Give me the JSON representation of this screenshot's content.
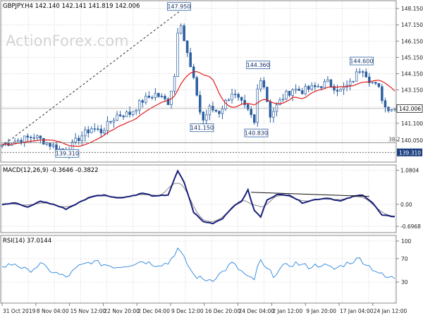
{
  "price_panel": {
    "header": "GBPJPY.H4  142.140 142.141 141.819 142.006",
    "watermark": "ActionForex.com",
    "current_price": "142.006",
    "fib_label": "38.2",
    "annotations": [
      {
        "label": "147.950",
        "time": 55.4,
        "price": 147.95
      },
      {
        "label": "144.360",
        "time": 80.2,
        "price": 144.36
      },
      {
        "label": "144.600",
        "time": 112.6,
        "price": 144.6
      },
      {
        "label": "141.150",
        "time": 62.6,
        "price": 141.15
      },
      {
        "label": "140.830",
        "time": 79.6,
        "price": 140.83
      },
      {
        "label": "139.310",
        "time": 20.4,
        "price": 139.31
      }
    ],
    "level_label_right": "139.310"
  },
  "macd_panel": {
    "header": "MACD(12,26,9) -0.3646 -0.3822"
  },
  "rsi_panel": {
    "header": "RSI(14) 37.0144"
  },
  "x_axis": {
    "tick_labels": [
      "31 Oct 2019",
      "8 Nov 04:00",
      "15 Nov 12:00",
      "22 Nov 20:00",
      "2 Dec 04:00",
      "9 Dec 12:00",
      "16 Dec 20:00",
      "24 Dec 04:00",
      "2 Jan 12:00",
      "9 Jan 20:00",
      "17 Jan 04:00",
      "24 Jan 12:00"
    ]
  },
  "colors": {
    "candle": "#2c5fa0",
    "moving_average": "#e21b1b",
    "macd": "#1a1f7a",
    "signal": "#8a8a8a",
    "rsi": "#3d8fe0",
    "trendline": "#303030",
    "grid": "#c8c8c8"
  },
  "chart_data": [
    {
      "type": "candlestick",
      "x_index_ticks": [
        0,
        8.2,
        16.4,
        24.6,
        32.8,
        41,
        49.2,
        57.4,
        65.6,
        73.8,
        82,
        90.2,
        98.4,
        106.6,
        114.8,
        123
      ],
      "price_axis_ticks": [
        140.05,
        141.1,
        142.1,
        143.15,
        144.15,
        145.15,
        146.15,
        147.15,
        148.15
      ],
      "ylim": [
        138.8,
        148.5
      ],
      "price_control_points": [
        [
          0,
          139.8
        ],
        [
          10,
          140.3
        ],
        [
          17,
          139.6
        ],
        [
          20,
          139.3
        ],
        [
          24,
          140.2
        ],
        [
          28,
          140.8
        ],
        [
          31,
          140.6
        ],
        [
          36,
          141.6
        ],
        [
          40,
          141.7
        ],
        [
          44,
          142.5
        ],
        [
          48,
          142.9
        ],
        [
          52,
          142.4
        ],
        [
          54,
          144.0
        ],
        [
          55.4,
          147.95
        ],
        [
          57,
          146.2
        ],
        [
          59,
          144.5
        ],
        [
          61,
          142.9
        ],
        [
          62.6,
          141.15
        ],
        [
          65,
          142.0
        ],
        [
          68,
          141.8
        ],
        [
          72,
          143.0
        ],
        [
          75,
          142.3
        ],
        [
          77.8,
          141.6
        ],
        [
          79.6,
          140.83
        ],
        [
          80.2,
          144.36
        ],
        [
          82,
          143.4
        ],
        [
          84,
          141.6
        ],
        [
          88,
          142.7
        ],
        [
          91,
          143.2
        ],
        [
          94,
          143.1
        ],
        [
          98,
          143.3
        ],
        [
          102,
          143.6
        ],
        [
          106,
          143.1
        ],
        [
          109,
          143.5
        ],
        [
          112.6,
          144.6
        ],
        [
          115,
          143.8
        ],
        [
          118,
          143.2
        ],
        [
          120,
          142.1
        ],
        [
          123,
          142.0
        ]
      ],
      "trendline": {
        "from": [
          0,
          139.7
        ],
        "to": [
          55.4,
          147.95
        ]
      },
      "retracement_level": 139.9,
      "support_level": 139.31
    },
    {
      "type": "line",
      "name": "MACD(12,26,9)",
      "y_axis_ticks": [
        1.0804,
        0.0,
        -0.6968
      ],
      "ylim": [
        -0.85,
        1.2
      ],
      "macd_control_points": [
        [
          0,
          0.0
        ],
        [
          4,
          0.05
        ],
        [
          8,
          -0.1
        ],
        [
          12,
          0.1
        ],
        [
          16,
          0.0
        ],
        [
          20,
          -0.15
        ],
        [
          24,
          0.05
        ],
        [
          28,
          0.25
        ],
        [
          32,
          0.3
        ],
        [
          36,
          0.2
        ],
        [
          40,
          0.25
        ],
        [
          44,
          0.35
        ],
        [
          48,
          0.25
        ],
        [
          52,
          0.3
        ],
        [
          55,
          1.05
        ],
        [
          57,
          0.7
        ],
        [
          60,
          -0.25
        ],
        [
          63,
          -0.55
        ],
        [
          66,
          -0.6
        ],
        [
          69,
          -0.45
        ],
        [
          72,
          -0.1
        ],
        [
          75,
          0.1
        ],
        [
          77,
          0.45
        ],
        [
          79,
          -0.2
        ],
        [
          81,
          -0.4
        ],
        [
          83,
          0.15
        ],
        [
          86,
          0.3
        ],
        [
          90,
          0.3
        ],
        [
          94,
          0.05
        ],
        [
          98,
          0.15
        ],
        [
          102,
          0.2
        ],
        [
          106,
          0.1
        ],
        [
          110,
          0.25
        ],
        [
          113,
          0.3
        ],
        [
          116,
          0.05
        ],
        [
          119,
          -0.35
        ],
        [
          122,
          -0.38
        ]
      ],
      "trendline": {
        "from": [
          78,
          0.38
        ],
        "to": [
          115,
          0.25
        ]
      }
    },
    {
      "type": "line",
      "name": "RSI(14)",
      "y_axis_ticks": [
        100,
        70,
        30
      ],
      "ylim": [
        0,
        100
      ],
      "rsi_control_points": [
        [
          0,
          55
        ],
        [
          4,
          62
        ],
        [
          8,
          48
        ],
        [
          12,
          60
        ],
        [
          16,
          47
        ],
        [
          20,
          38
        ],
        [
          24,
          56
        ],
        [
          28,
          65
        ],
        [
          32,
          60
        ],
        [
          36,
          56
        ],
        [
          40,
          60
        ],
        [
          44,
          66
        ],
        [
          48,
          60
        ],
        [
          52,
          62
        ],
        [
          55,
          87
        ],
        [
          57,
          70
        ],
        [
          60,
          42
        ],
        [
          63,
          34
        ],
        [
          66,
          35
        ],
        [
          69,
          47
        ],
        [
          72,
          62
        ],
        [
          75,
          48
        ],
        [
          77,
          38
        ],
        [
          79.6,
          30
        ],
        [
          80.2,
          72
        ],
        [
          82,
          56
        ],
        [
          85,
          42
        ],
        [
          88,
          56
        ],
        [
          92,
          62
        ],
        [
          96,
          56
        ],
        [
          100,
          60
        ],
        [
          104,
          52
        ],
        [
          108,
          62
        ],
        [
          112,
          70
        ],
        [
          115,
          57
        ],
        [
          118,
          46
        ],
        [
          120,
          38
        ],
        [
          123,
          37
        ]
      ]
    }
  ]
}
